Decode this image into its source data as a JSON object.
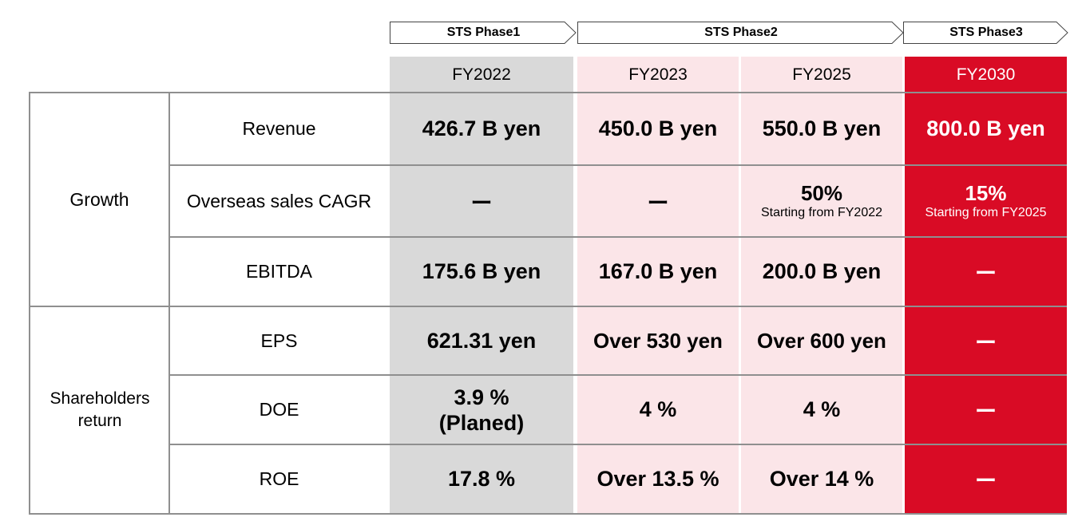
{
  "phases": [
    {
      "label": "STS Phase1"
    },
    {
      "label": "STS Phase2"
    },
    {
      "label": "STS Phase3"
    }
  ],
  "columns": [
    "FY2022",
    "FY2023",
    "FY2025",
    "FY2030"
  ],
  "groups": [
    {
      "label": "Growth"
    },
    {
      "label": "Shareholders return"
    }
  ],
  "rows": [
    {
      "label": "Revenue",
      "cells": [
        {
          "value": "426.7 B yen"
        },
        {
          "value": "450.0 B yen"
        },
        {
          "value": "550.0 B yen"
        },
        {
          "value": "800.0 B yen"
        }
      ]
    },
    {
      "label": "Overseas sales CAGR",
      "cells": [
        {
          "value": "ー"
        },
        {
          "value": "ー"
        },
        {
          "value": "50%",
          "sub": "Starting from FY2022"
        },
        {
          "value": "15%",
          "sub": "Starting from FY2025"
        }
      ]
    },
    {
      "label": "EBITDA",
      "cells": [
        {
          "value": "175.6 B yen"
        },
        {
          "value": "167.0 B yen"
        },
        {
          "value": "200.0 B yen"
        },
        {
          "value": "ー"
        }
      ]
    },
    {
      "label": "EPS",
      "cells": [
        {
          "value": "621.31 yen"
        },
        {
          "value": "Over 530 yen"
        },
        {
          "value": "Over 600 yen"
        },
        {
          "value": "ー"
        }
      ]
    },
    {
      "label": "DOE",
      "cells": [
        {
          "value": "3.9 %",
          "sub": "(Planed)"
        },
        {
          "value": "4 %"
        },
        {
          "value": "4 %"
        },
        {
          "value": "ー"
        }
      ]
    },
    {
      "label": "ROE",
      "cells": [
        {
          "value": "17.8 %"
        },
        {
          "value": "Over 13.5 %"
        },
        {
          "value": "Over 14 %"
        },
        {
          "value": "ー"
        }
      ]
    }
  ],
  "colors": {
    "fy2022_bg": "#d9d9d9",
    "phase2_bg": "#fbe5e8",
    "fy2030_bg": "#d90b25",
    "grid": "#8f8f8f"
  }
}
